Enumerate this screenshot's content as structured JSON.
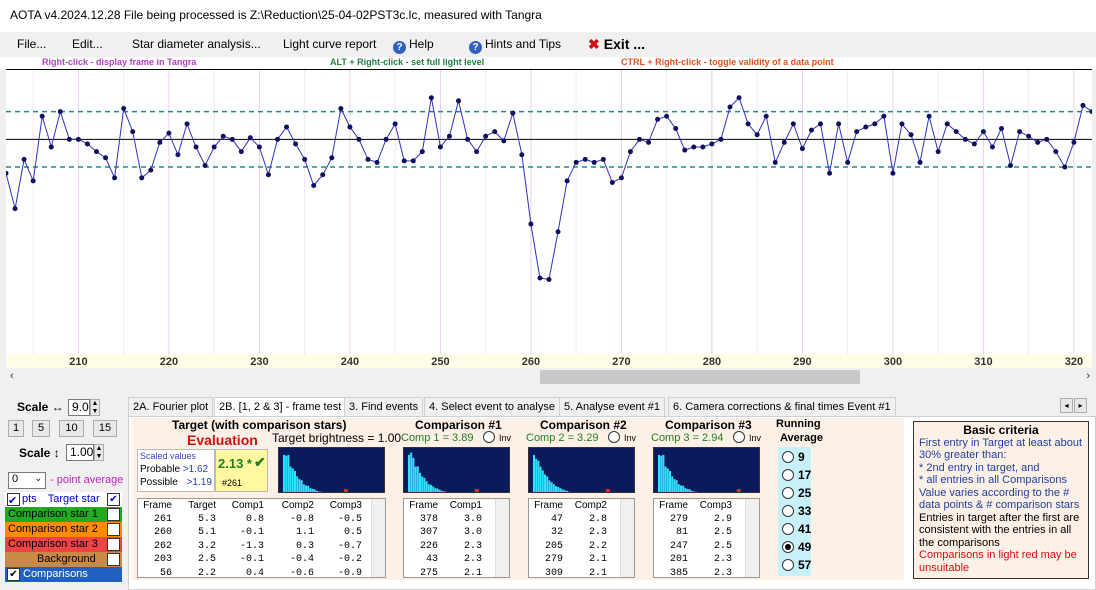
{
  "window": {
    "title": "AOTA v4.2024.12.28    File being processed is Z:\\Reduction\\25-04-02PST3c.lc, measured with Tangra"
  },
  "menu": {
    "file": "File...",
    "edit": "Edit...",
    "star_diameter": "Star diameter analysis...",
    "light_curve_report": "Light curve report",
    "help": "Help",
    "hints": "Hints and Tips",
    "exit": "Exit ..."
  },
  "hints": {
    "right_click": "Right-click  -  display frame in Tangra",
    "alt_right_click": "ALT + Right-click  -  set full light level",
    "ctrl_right_click": "CTRL + Right-click  -  toggle validity of a data point"
  },
  "chart_data": {
    "type": "line",
    "x_ticks": [
      "210",
      "220",
      "230",
      "240",
      "250",
      "260",
      "270",
      "280",
      "290",
      "300",
      "310",
      "320"
    ],
    "xlim": [
      202,
      322
    ],
    "ylim": [
      -0.4,
      1.45
    ],
    "reference_lines": {
      "mean": 1.0,
      "upper": 1.18,
      "lower": 0.82
    },
    "series": [
      {
        "x": [
          202,
          203,
          204,
          205,
          206,
          207,
          208,
          209,
          210,
          211,
          212,
          213,
          214,
          215,
          216,
          217,
          218,
          219,
          220,
          221,
          222,
          223,
          224,
          225,
          226,
          227,
          228,
          229,
          230,
          231,
          232,
          233,
          234,
          235,
          236,
          237,
          238,
          239,
          240,
          241,
          242,
          243,
          244,
          245,
          246,
          247,
          248,
          249,
          250,
          251,
          252,
          253,
          254,
          255,
          256,
          257,
          258,
          259,
          260,
          261,
          262,
          263,
          264,
          265,
          266,
          267,
          268,
          269,
          270,
          271,
          272,
          273,
          274,
          275,
          276,
          277,
          278,
          279,
          280,
          281,
          282,
          283,
          284,
          285,
          286,
          287,
          288,
          289,
          290,
          291,
          292,
          293,
          294,
          295,
          296,
          297,
          298,
          299,
          300,
          301,
          302,
          303,
          304,
          305,
          306,
          307,
          308,
          309,
          310,
          311,
          312,
          313,
          314,
          315,
          316,
          317,
          318,
          319,
          320,
          321,
          322
        ],
        "y": [
          0.78,
          0.55,
          0.87,
          0.73,
          1.15,
          0.95,
          1.18,
          1.0,
          1.0,
          0.97,
          0.92,
          0.88,
          0.75,
          1.2,
          1.05,
          0.75,
          0.8,
          0.98,
          1.04,
          0.9,
          1.1,
          0.95,
          0.83,
          0.95,
          1.02,
          1.0,
          0.92,
          1.01,
          0.95,
          0.77,
          1.0,
          1.08,
          0.97,
          0.87,
          0.7,
          0.77,
          0.88,
          1.2,
          1.08,
          1.0,
          0.87,
          0.85,
          1.0,
          1.1,
          0.86,
          0.86,
          0.92,
          1.27,
          0.95,
          1.02,
          1.25,
          1.0,
          0.92,
          1.02,
          1.05,
          0.99,
          1.17,
          0.9,
          0.45,
          0.1,
          0.09,
          0.4,
          0.73,
          0.85,
          0.87,
          0.85,
          0.87,
          0.72,
          0.75,
          0.92,
          1.0,
          0.98,
          1.13,
          1.15,
          1.07,
          0.93,
          0.95,
          0.95,
          0.97,
          1.0,
          1.21,
          1.27,
          1.1,
          1.03,
          1.15,
          0.85,
          0.98,
          1.1,
          0.94,
          1.06,
          1.1,
          0.78,
          1.1,
          0.85,
          1.05,
          1.08,
          1.1,
          1.15,
          0.78,
          1.1,
          1.03,
          0.85,
          1.15,
          0.92,
          1.1,
          1.05,
          1.0,
          0.97,
          1.05,
          0.95,
          1.07,
          0.83,
          1.05,
          1.02,
          0.98,
          1.0,
          0.92,
          0.82,
          0.98,
          1.22,
          1.18
        ]
      }
    ]
  },
  "left": {
    "scale_h_label": "Scale ↔",
    "scale_h_value": "9.0",
    "buttons": [
      "1",
      "5",
      "10",
      "15"
    ],
    "scale_v_label": "Scale ↕",
    "scale_v_value": "1.00",
    "point_avg_value": "0",
    "point_avg_label": "- point average",
    "legend": {
      "pts": "pts",
      "target": "Target star",
      "comp1": "Comparison star 1",
      "comp2": "Comparison star 2",
      "comp3": "Comparison star 3",
      "background": "Background",
      "comparisons_scaled": "Comparisons scaled"
    },
    "colors": {
      "target": "#0000c0",
      "comp1": "#22aa22",
      "comp2": "#ff8c00",
      "comp3": "#ee4444",
      "background": "#c88a44",
      "scaled": "#2060c0"
    }
  },
  "tabs": [
    {
      "label": "2A. Fourier plot"
    },
    {
      "label": "2B. [1, 2 & 3] - frame test"
    },
    {
      "label": "3. Find events"
    },
    {
      "label": "4. Select event to analyse"
    },
    {
      "label": "5. Analyse event #1"
    },
    {
      "label": "6. Camera corrections & final times Event #1"
    }
  ],
  "target": {
    "title": "Target (with comparison stars)",
    "evaluation": "Evaluation",
    "scaled_values": "Scaled values",
    "probable": "Probable",
    "probable_value": ">1.62",
    "possible": "Possible",
    "possible_value": ">1.19",
    "score": "2.13 *",
    "frame_ref": "#261",
    "brightness": "Target  brightness = 1.00",
    "table": {
      "headers": [
        "Frame",
        "Target",
        "Comp1",
        "Comp2",
        "Comp3"
      ],
      "rows": [
        [
          "261",
          "5.3",
          "0.8",
          "-0.8",
          "-0.5"
        ],
        [
          "260",
          "5.1",
          "-0.1",
          "1.1",
          "0.5"
        ],
        [
          "262",
          "3.2",
          "-1.3",
          "0.3",
          "-0.7"
        ],
        [
          "203",
          "2.5",
          "-0.1",
          "-0.4",
          "-0.2"
        ],
        [
          "56",
          "2.2",
          "0.4",
          "-0.6",
          "-0.9"
        ]
      ]
    }
  },
  "comps": [
    {
      "title": "Comparison #1",
      "subtitle": "Comp 1 = 3.89",
      "inv": "Inv",
      "headers": [
        "Frame",
        "Comp1"
      ],
      "rows": [
        [
          "378",
          "3.0"
        ],
        [
          "307",
          "3.0"
        ],
        [
          "226",
          "2.3"
        ],
        [
          "43",
          "2.3"
        ],
        [
          "275",
          "2.1"
        ]
      ]
    },
    {
      "title": "Comparison #2",
      "subtitle": "Comp 2 = 3.29",
      "inv": "Inv",
      "headers": [
        "Frame",
        "Comp2"
      ],
      "rows": [
        [
          "47",
          "2.8"
        ],
        [
          "32",
          "2.3"
        ],
        [
          "205",
          "2.2"
        ],
        [
          "279",
          "2.1"
        ],
        [
          "309",
          "2.1"
        ]
      ]
    },
    {
      "title": "Comparison #3",
      "subtitle": "Comp 3 = 2.94",
      "inv": "Inv",
      "headers": [
        "Frame",
        "Comp3"
      ],
      "rows": [
        [
          "279",
          "2.9"
        ],
        [
          "81",
          "2.5"
        ],
        [
          "247",
          "2.5"
        ],
        [
          "201",
          "2.3"
        ],
        [
          "385",
          "2.3"
        ]
      ]
    }
  ],
  "running_average": {
    "title1": "Running",
    "title2": "Average",
    "options": [
      "9",
      "17",
      "25",
      "33",
      "41",
      "49",
      "57"
    ],
    "selected": "49"
  },
  "criteria": {
    "title": "Basic criteria",
    "line1": "First entry in Target at least about 30% greater than:",
    "line2": "*  2nd  entry in target, and",
    "line3": "*  all entries in all Comparisons",
    "line4": "Value varies according to the # data points & # comparison stars",
    "line5": "Entries in target after the first are consistent with the entries in all the comparisons",
    "line6": "Comparisons in light red may be unsuitable"
  }
}
